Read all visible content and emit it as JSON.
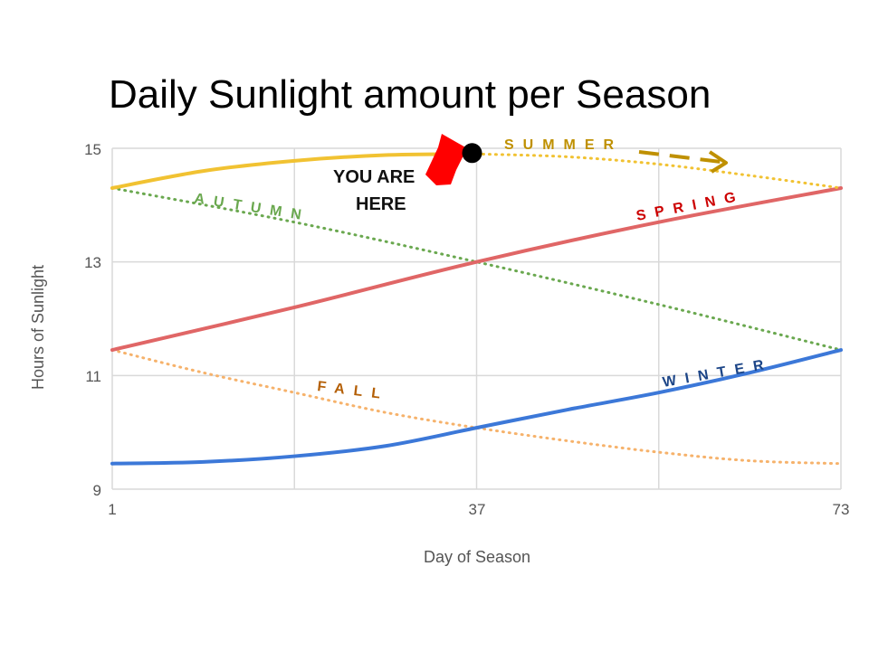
{
  "chart_data": {
    "type": "line",
    "title": "Daily Sunlight amount per Season",
    "xlabel": "Day of Season",
    "ylabel": "Hours of Sunlight",
    "xlim": [
      1,
      73
    ],
    "ylim": [
      9,
      15
    ],
    "x_ticks": [
      "1",
      "37",
      "73"
    ],
    "y_ticks": [
      "9",
      "11",
      "13",
      "15"
    ],
    "grid": true,
    "series": [
      {
        "name": "SUMMER",
        "color": "#f1c232",
        "style": "solid then dotted",
        "points": [
          [
            1,
            14.3
          ],
          [
            10,
            14.6
          ],
          [
            19,
            14.78
          ],
          [
            28,
            14.88
          ],
          [
            37,
            14.9
          ],
          [
            46,
            14.85
          ],
          [
            55,
            14.72
          ],
          [
            64,
            14.52
          ],
          [
            73,
            14.3
          ]
        ]
      },
      {
        "name": "AUTUMN",
        "color": "#6aa84f",
        "style": "dotted",
        "points": [
          [
            1,
            14.3
          ],
          [
            19,
            13.7
          ],
          [
            37,
            13.0
          ],
          [
            55,
            12.25
          ],
          [
            73,
            11.45
          ]
        ]
      },
      {
        "name": "SPRING",
        "color": "#e06666",
        "style": "solid",
        "points": [
          [
            1,
            11.45
          ],
          [
            19,
            12.2
          ],
          [
            37,
            13.0
          ],
          [
            55,
            13.7
          ],
          [
            73,
            14.3
          ]
        ]
      },
      {
        "name": "FALL",
        "color": "#f6b26b",
        "style": "dotted",
        "points": [
          [
            1,
            11.45
          ],
          [
            10,
            11.05
          ],
          [
            19,
            10.7
          ],
          [
            28,
            10.35
          ],
          [
            37,
            10.08
          ],
          [
            46,
            9.85
          ],
          [
            55,
            9.65
          ],
          [
            64,
            9.5
          ],
          [
            73,
            9.45
          ]
        ]
      },
      {
        "name": "WINTER",
        "color": "#3c78d8",
        "style": "solid",
        "points": [
          [
            1,
            9.45
          ],
          [
            10,
            9.48
          ],
          [
            19,
            9.58
          ],
          [
            28,
            9.76
          ],
          [
            37,
            10.08
          ],
          [
            46,
            10.4
          ],
          [
            55,
            10.7
          ],
          [
            64,
            11.05
          ],
          [
            73,
            11.45
          ]
        ]
      }
    ],
    "series_labels": {
      "summer": "SUMMER",
      "autumn": "AUTUMN",
      "spring": "SPRING",
      "fall": "FALL",
      "winter": "WINTER"
    },
    "annotations": {
      "marker": [
        37,
        14.9
      ],
      "you_are_here_line1": "YOU ARE",
      "you_are_here_line2": "HERE"
    }
  }
}
